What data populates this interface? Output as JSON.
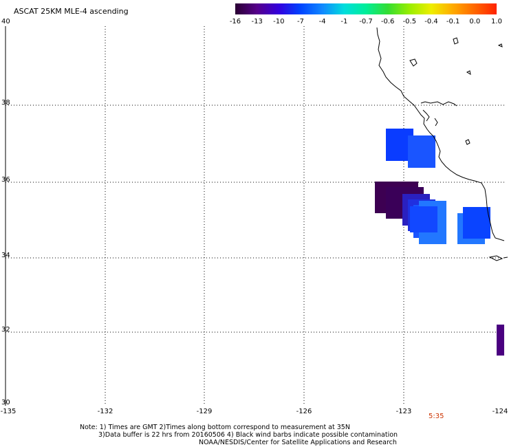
{
  "title": "ASCAT 25KM MLE-4 ascending",
  "colorbar": {
    "labels": [
      "-16",
      "-13",
      "-10",
      "-7",
      "-4",
      "-1",
      "-0.7",
      "-0.6",
      "-0.5",
      "-0.4",
      "-0.1",
      "0.0",
      "1.0"
    ],
    "colors": [
      "#2a0033",
      "#55008a",
      "#3300dd",
      "#0044ff",
      "#1188ff",
      "#00dddd",
      "#00ee99",
      "#33dd33",
      "#99ee00",
      "#eeee00",
      "#ffaa00",
      "#ff6600",
      "#ff2200"
    ]
  },
  "axes": {
    "y_ticks": [
      "40",
      "38",
      "36",
      "34",
      "32",
      "30"
    ],
    "x_ticks": [
      "-135",
      "-132",
      "-129",
      "-126",
      "-123",
      "-124"
    ]
  },
  "time_label": "5:35",
  "notes": {
    "line1": "Note: 1) Times are GMT 2)Times along bottom correspond to measurement at 35N",
    "line2": "3)Data buffer is 22 hrs from 20160506 4) Black wind barbs indicate possible contamination",
    "line3": "NOAA/NESDIS/Center for Satellite Applications and Research"
  },
  "colors": {
    "dark_purple": "#3d0052",
    "purple": "#4a0080",
    "blue": "#0a44ff",
    "mid_blue": "#1466ff",
    "light_blue": "#2277ff"
  }
}
